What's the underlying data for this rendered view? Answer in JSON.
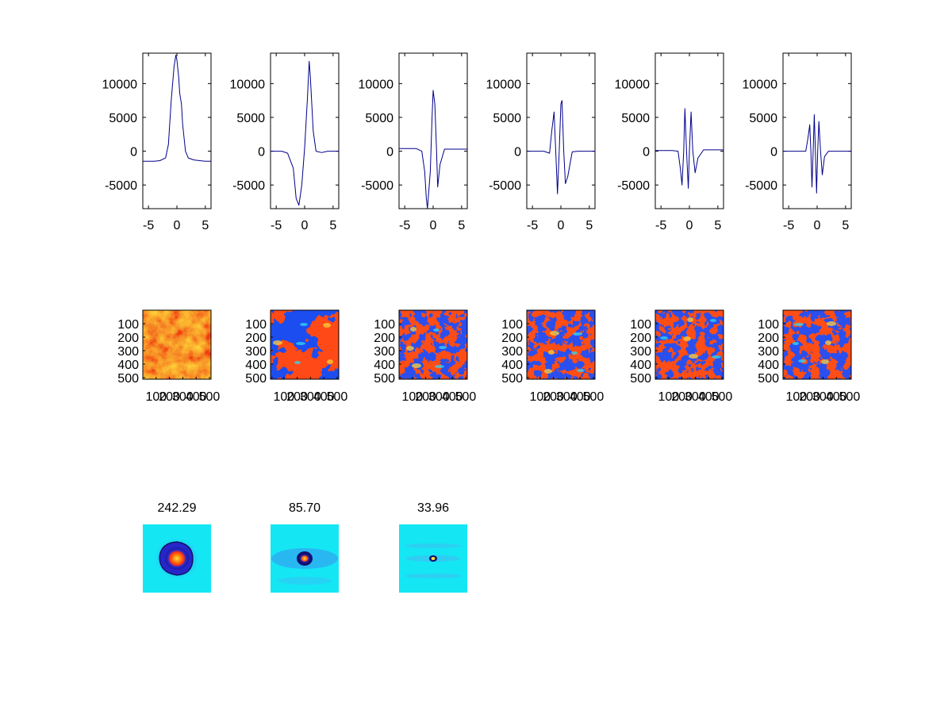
{
  "figure": {
    "background": "#ffffff",
    "line_color": "#00008b"
  },
  "chart_data": [
    {
      "type": "line",
      "row": "top",
      "panel": 1,
      "xlim": [
        -6,
        6
      ],
      "ylim": [
        -8500,
        14500
      ],
      "xticks": [
        "-5",
        "0",
        "5"
      ],
      "yticks": [
        "-5000",
        "0",
        "5000",
        "10000"
      ],
      "x": [
        -6,
        -5,
        -4,
        -3,
        -2,
        -1.5,
        -1,
        -0.5,
        -0.2,
        0,
        0.3,
        0.5,
        0.8,
        1,
        1.5,
        2,
        3,
        4,
        5,
        6
      ],
      "values": [
        -1500,
        -1500,
        -1500,
        -1400,
        -1000,
        1000,
        7500,
        12500,
        14200,
        13500,
        11000,
        8500,
        7000,
        4000,
        0,
        -1000,
        -1300,
        -1400,
        -1500,
        -1500
      ]
    },
    {
      "type": "line",
      "row": "top",
      "panel": 2,
      "xlim": [
        -6,
        6
      ],
      "ylim": [
        -8500,
        14500
      ],
      "xticks": [
        "-5",
        "0",
        "5"
      ],
      "yticks": [
        "-5000",
        "0",
        "5000",
        "10000"
      ],
      "x": [
        -6,
        -4,
        -3,
        -2,
        -1.5,
        -1,
        -0.5,
        0,
        0.5,
        0.8,
        1,
        1.5,
        2,
        3,
        4,
        6
      ],
      "values": [
        0,
        0,
        -300,
        -2500,
        -7000,
        -8000,
        -5000,
        500,
        8000,
        13300,
        11000,
        3000,
        0,
        -200,
        0,
        0
      ]
    },
    {
      "type": "line",
      "row": "top",
      "panel": 3,
      "xlim": [
        -6,
        6
      ],
      "ylim": [
        -8500,
        14500
      ],
      "xticks": [
        "-5",
        "0",
        "5"
      ],
      "yticks": [
        "-5000",
        "0",
        "5000",
        "10000"
      ],
      "x": [
        -6,
        -3,
        -2,
        -1.5,
        -1.2,
        -1,
        -0.5,
        -0.2,
        0,
        0.3,
        0.6,
        0.8,
        1.2,
        2,
        3,
        6
      ],
      "values": [
        400,
        400,
        0,
        -3000,
        -7000,
        -8500,
        -3000,
        5000,
        9000,
        7000,
        0,
        -5300,
        -2000,
        300,
        300,
        300
      ]
    },
    {
      "type": "line",
      "row": "top",
      "panel": 4,
      "xlim": [
        -6,
        6
      ],
      "ylim": [
        -8500,
        14500
      ],
      "xticks": [
        "-5",
        "0",
        "5"
      ],
      "yticks": [
        "-5000",
        "0",
        "5000",
        "10000"
      ],
      "x": [
        -6,
        -3,
        -2,
        -1.6,
        -1.2,
        -0.9,
        -0.6,
        -0.3,
        0,
        0.2,
        0.5,
        0.8,
        1.2,
        2,
        3,
        6
      ],
      "values": [
        0,
        0,
        -300,
        3000,
        5800,
        0,
        -6300,
        0,
        7000,
        7500,
        0,
        -4800,
        -3800,
        -100,
        0,
        0
      ]
    },
    {
      "type": "line",
      "row": "top",
      "panel": 5,
      "xlim": [
        -6,
        6
      ],
      "ylim": [
        -8500,
        14500
      ],
      "xticks": [
        "-5",
        "0",
        "5"
      ],
      "yticks": [
        "-5000",
        "0",
        "5000",
        "10000"
      ],
      "x": [
        -6,
        -3,
        -2,
        -1.6,
        -1.3,
        -1,
        -0.8,
        -0.5,
        -0.2,
        0,
        0.3,
        0.6,
        1,
        1.5,
        2.5,
        6
      ],
      "values": [
        100,
        100,
        0,
        -2500,
        -5000,
        0,
        6300,
        0,
        -5500,
        0,
        5800,
        0,
        -3200,
        -1000,
        200,
        200
      ]
    },
    {
      "type": "line",
      "row": "top",
      "panel": 6,
      "xlim": [
        -6,
        6
      ],
      "ylim": [
        -8500,
        14500
      ],
      "xticks": [
        "-5",
        "0",
        "5"
      ],
      "yticks": [
        "-5000",
        "0",
        "5000",
        "10000"
      ],
      "x": [
        -6,
        -3,
        -2,
        -1.6,
        -1.3,
        -1.1,
        -0.9,
        -0.7,
        -0.5,
        -0.3,
        -0.1,
        0.1,
        0.3,
        0.6,
        0.9,
        1.3,
        2,
        3,
        6
      ],
      "values": [
        0,
        0,
        0,
        2000,
        3900,
        0,
        -5300,
        0,
        5400,
        0,
        -6200,
        0,
        4400,
        0,
        -3500,
        -800,
        0,
        0,
        0
      ]
    },
    {
      "type": "heatmap",
      "row": "middle",
      "panel": 1,
      "palette": "warm",
      "xticks": [
        "100",
        "200",
        "300",
        "400",
        "500"
      ],
      "yticks": [
        "100",
        "200",
        "300",
        "400",
        "500"
      ]
    },
    {
      "type": "heatmap",
      "row": "middle",
      "panel": 2,
      "palette": "split",
      "xticks": [
        "100",
        "200",
        "300",
        "400",
        "500"
      ],
      "yticks": [
        "100",
        "200",
        "300",
        "400",
        "500"
      ]
    },
    {
      "type": "heatmap",
      "row": "middle",
      "panel": 3,
      "palette": "mixed",
      "xticks": [
        "100",
        "200",
        "300",
        "400",
        "500"
      ],
      "yticks": [
        "100",
        "200",
        "300",
        "400",
        "500"
      ]
    },
    {
      "type": "heatmap",
      "row": "middle",
      "panel": 4,
      "palette": "mixed",
      "xticks": [
        "100",
        "200",
        "300",
        "400",
        "500"
      ],
      "yticks": [
        "100",
        "200",
        "300",
        "400",
        "500"
      ]
    },
    {
      "type": "heatmap",
      "row": "middle",
      "panel": 5,
      "palette": "mixed",
      "xticks": [
        "100",
        "200",
        "300",
        "400",
        "500"
      ],
      "yticks": [
        "100",
        "200",
        "300",
        "400",
        "500"
      ]
    },
    {
      "type": "heatmap",
      "row": "middle",
      "panel": 6,
      "palette": "mixed",
      "xticks": [
        "100",
        "200",
        "300",
        "400",
        "500"
      ],
      "yticks": [
        "100",
        "200",
        "300",
        "400",
        "500"
      ]
    },
    {
      "type": "heatmap",
      "row": "bottom",
      "panel": 1,
      "title": "242.29",
      "palette": "cyan-peak"
    },
    {
      "type": "heatmap",
      "row": "bottom",
      "panel": 2,
      "title": "85.70",
      "palette": "cyan-peak"
    },
    {
      "type": "heatmap",
      "row": "bottom",
      "panel": 3,
      "title": "33.96",
      "palette": "cyan-peak"
    }
  ]
}
